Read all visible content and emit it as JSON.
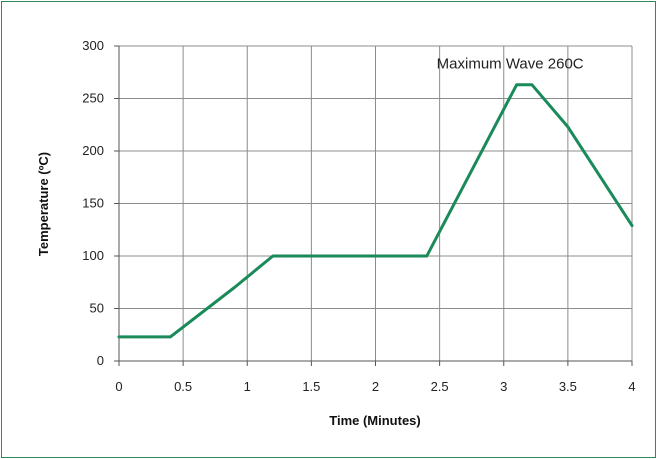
{
  "chart_data": {
    "type": "line",
    "title": "",
    "xlabel": "Time (Minutes)",
    "ylabel": "Temperature (ºC)",
    "xlim": [
      0,
      4
    ],
    "ylim": [
      0,
      300
    ],
    "x_ticks": [
      0,
      0.5,
      1,
      1.5,
      2,
      2.5,
      3,
      3.5,
      4
    ],
    "x_tick_labels": [
      "0",
      "0.5",
      "1",
      "1.5",
      "2",
      "2.5",
      "3",
      "3.5",
      "4"
    ],
    "y_ticks": [
      0,
      50,
      100,
      150,
      200,
      250,
      300
    ],
    "y_tick_labels": [
      "0",
      "50",
      "100",
      "150",
      "200",
      "250",
      "300"
    ],
    "grid": true,
    "series": [
      {
        "color": "#1b8a5a",
        "points": [
          [
            0,
            23
          ],
          [
            0.4,
            23
          ],
          [
            0.9,
            70
          ],
          [
            1.2,
            100
          ],
          [
            2.4,
            100
          ],
          [
            3.1,
            263
          ],
          [
            3.22,
            263
          ],
          [
            3.5,
            223
          ],
          [
            4,
            129
          ]
        ]
      }
    ],
    "annotations": [
      {
        "text": "Maximum Wave 260C",
        "x": 3.05,
        "y": 275
      }
    ]
  }
}
